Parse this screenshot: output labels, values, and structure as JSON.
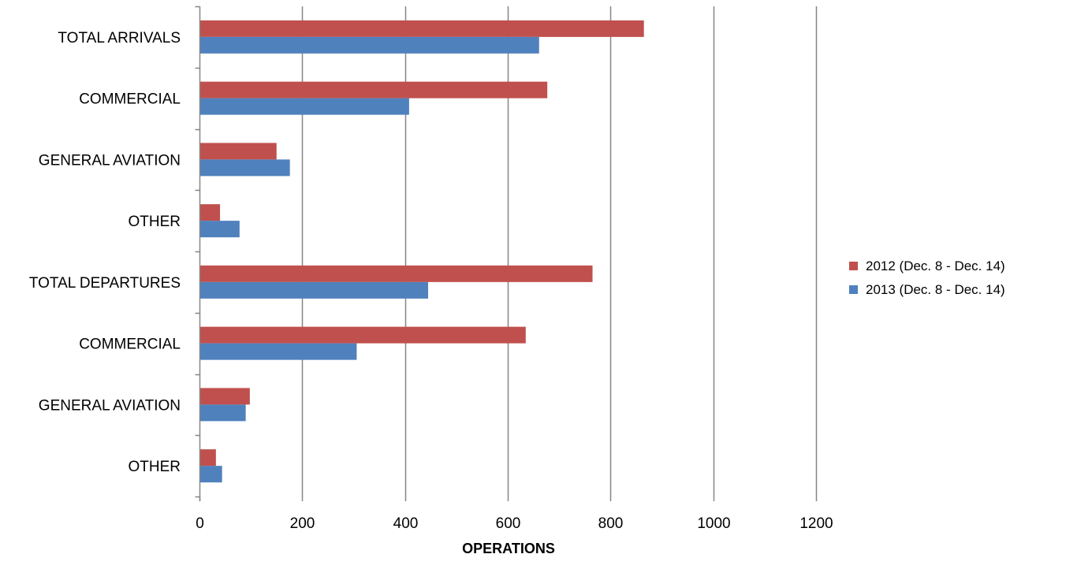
{
  "chart_data": {
    "type": "bar",
    "orientation": "horizontal",
    "categories": [
      "TOTAL ARRIVALS",
      "COMMERCIAL",
      "GENERAL AVIATION",
      "OTHER",
      "TOTAL DEPARTURES",
      "COMMERCIAL",
      "GENERAL AVIATION",
      "OTHER"
    ],
    "series": [
      {
        "name": "2012 (Dec. 8 - Dec. 14)",
        "color": "#C0504D",
        "values": [
          865,
          677,
          150,
          40,
          765,
          635,
          98,
          32
        ]
      },
      {
        "name": "2013 (Dec. 8 - Dec. 14)",
        "color": "#4F81BD",
        "values": [
          661,
          408,
          176,
          78,
          445,
          306,
          90,
          44
        ]
      }
    ],
    "xlabel": "OPERATIONS",
    "ylabel": "",
    "xlim": [
      0,
      1200
    ],
    "xticks": [
      "0",
      "200",
      "400",
      "600",
      "800",
      "1000",
      "1200"
    ],
    "grid": true,
    "gridline_color": "#868686",
    "legend_position": "right"
  }
}
